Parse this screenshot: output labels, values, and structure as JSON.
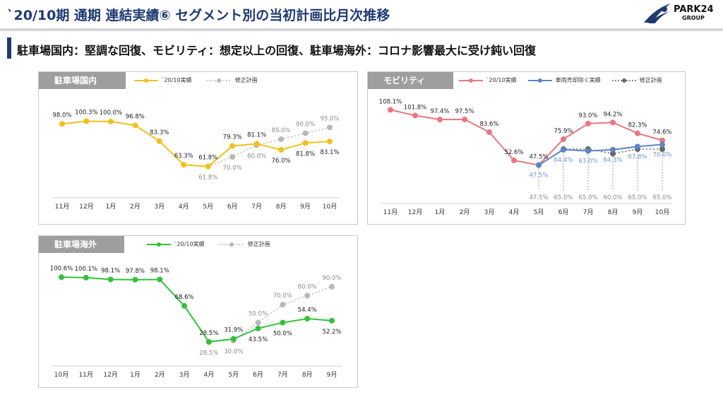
{
  "title": "`20/10期 通期 連結実績⑥ セグメント別の当初計画比月次推移",
  "logo": {
    "name": "PARK24",
    "sub": "GROUP"
  },
  "subtitle": "駐車場国内：堅調な回復、モビリティ：想定以上の回復、駐車場海外：コロナ影響最大に受け鈍い回復",
  "colors": {
    "domestic": "#f2c01e",
    "mobility": "#ec7582",
    "mobility_ex": "#5b85c9",
    "overseas": "#33c13a",
    "plan": "#b8b8b8"
  },
  "chart_data": [
    {
      "id": "domestic",
      "type": "line",
      "tab": "駐車場国内",
      "categories": [
        "11月",
        "12月",
        "1月",
        "2月",
        "3月",
        "4月",
        "5月",
        "6月",
        "7月",
        "8月",
        "9月",
        "10月"
      ],
      "ylim": [
        40,
        115
      ],
      "series": [
        {
          "name": "`20/10実績",
          "color": "#f2c01e",
          "dashed": false,
          "values": [
            98.0,
            100.3,
            100.0,
            96.8,
            83.3,
            63.3,
            61.8,
            79.3,
            81.1,
            76.0,
            81.8,
            83.1
          ],
          "labels": [
            "98.0%",
            "100.3%",
            "100.0%",
            "96.8%",
            "83.3%",
            "63.3%",
            "61.8%",
            "79.3%",
            "81.1%",
            "76.0%",
            "81.8%",
            "83.1%"
          ],
          "label_pos": [
            "a",
            "a",
            "a",
            "a",
            "a",
            "a",
            "a",
            "a",
            "a",
            "b",
            "b",
            "b"
          ]
        },
        {
          "name": "修正計画",
          "color": "#b8b8b8",
          "dashed": true,
          "values": [
            null,
            null,
            null,
            null,
            null,
            null,
            61.8,
            70.0,
            80.0,
            85.0,
            90.0,
            95.0
          ],
          "labels": [
            null,
            null,
            null,
            null,
            null,
            null,
            "61.8%",
            "70.0%",
            "80.0%",
            "85.0%",
            "90.0%",
            "95.0%"
          ],
          "label_pos": [
            null,
            null,
            null,
            null,
            null,
            null,
            "b",
            "b",
            "b",
            "a",
            "a",
            "a"
          ]
        }
      ]
    },
    {
      "id": "mobility",
      "type": "line",
      "tab": "モビリティ",
      "categories": [
        "11月",
        "12月",
        "1月",
        "2月",
        "3月",
        "4月",
        "5月",
        "6月",
        "7月",
        "8月",
        "9月",
        "10月"
      ],
      "ylim": [
        10,
        120
      ],
      "series": [
        {
          "name": "`20/10実績",
          "color": "#ec7582",
          "dashed": false,
          "values": [
            108.1,
            101.8,
            97.4,
            97.5,
            83.6,
            52.6,
            47.5,
            75.9,
            93.0,
            94.2,
            82.3,
            74.6
          ],
          "labels": [
            "108.1%",
            "101.8%",
            "97.4%",
            "97.5%",
            "83.6%",
            "52.6%",
            "47.5%",
            "75.9%",
            "93.0%",
            "94.2%",
            "82.3%",
            "74.6%"
          ],
          "label_pos": [
            "a",
            "a",
            "a",
            "a",
            "a",
            "a",
            "a",
            "a",
            "a",
            "a",
            "a",
            "a"
          ]
        },
        {
          "name": "車両売却除く実績",
          "color": "#5b85c9",
          "dashed": false,
          "values": [
            null,
            null,
            null,
            null,
            null,
            null,
            47.5,
            64.4,
            63.0,
            64.3,
            67.8,
            70.0
          ],
          "labels": [
            null,
            null,
            null,
            null,
            null,
            null,
            "47.5%",
            "64.4%",
            "63.0%",
            "64.3%",
            "67.8%",
            "70.0%"
          ],
          "label_pos": [
            null,
            null,
            null,
            null,
            null,
            null,
            "b",
            "b",
            "b",
            "b",
            "b",
            "b"
          ]
        },
        {
          "name": "修正計画",
          "color": "#666666",
          "dashed": true,
          "values": [
            null,
            null,
            null,
            null,
            null,
            null,
            47.5,
            65.0,
            65.0,
            60.0,
            65.0,
            65.0
          ],
          "labels": [
            null,
            null,
            null,
            null,
            null,
            null,
            "47.5%",
            "65.0%",
            "65.0%",
            "60.0%",
            "65.0%",
            "65.0%"
          ],
          "label_pos": [
            null,
            null,
            null,
            null,
            null,
            null,
            "f",
            "f",
            "f",
            "f",
            "f",
            "f"
          ]
        }
      ]
    },
    {
      "id": "overseas",
      "type": "line",
      "tab": "駐車場海外",
      "categories": [
        "10月",
        "11月",
        "12月",
        "1月",
        "2月",
        "3月",
        "4月",
        "5月",
        "6月",
        "7月",
        "8月",
        "9月"
      ],
      "ylim": [
        15,
        115
      ],
      "series": [
        {
          "name": "`20/10実績",
          "color": "#33c13a",
          "dashed": false,
          "values": [
            100.6,
            100.1,
            98.1,
            97.8,
            98.1,
            68.6,
            28.5,
            31.9,
            43.5,
            50.0,
            54.4,
            52.2
          ],
          "labels": [
            "100.6%",
            "100.1%",
            "98.1%",
            "97.8%",
            "98.1%",
            "68.6%",
            "28.5%",
            "31.9%",
            "43.5%",
            "50.0%",
            "54.4%",
            "52.2%"
          ],
          "label_pos": [
            "a",
            "a",
            "a",
            "a",
            "a",
            "a",
            "a",
            "a",
            "b",
            "b",
            "a",
            "b"
          ]
        },
        {
          "name": "修正計画",
          "color": "#b8b8b8",
          "dashed": true,
          "values": [
            null,
            null,
            null,
            null,
            null,
            null,
            28.5,
            30.0,
            50.0,
            70.0,
            80.0,
            90.0
          ],
          "labels": [
            null,
            null,
            null,
            null,
            null,
            null,
            "28.5%",
            "30.0%",
            "50.0%",
            "70.0%",
            "80.0%",
            "90.0%"
          ],
          "label_pos": [
            null,
            null,
            null,
            null,
            null,
            null,
            "b",
            "b",
            "a",
            "a",
            "a",
            "a"
          ]
        }
      ]
    }
  ]
}
